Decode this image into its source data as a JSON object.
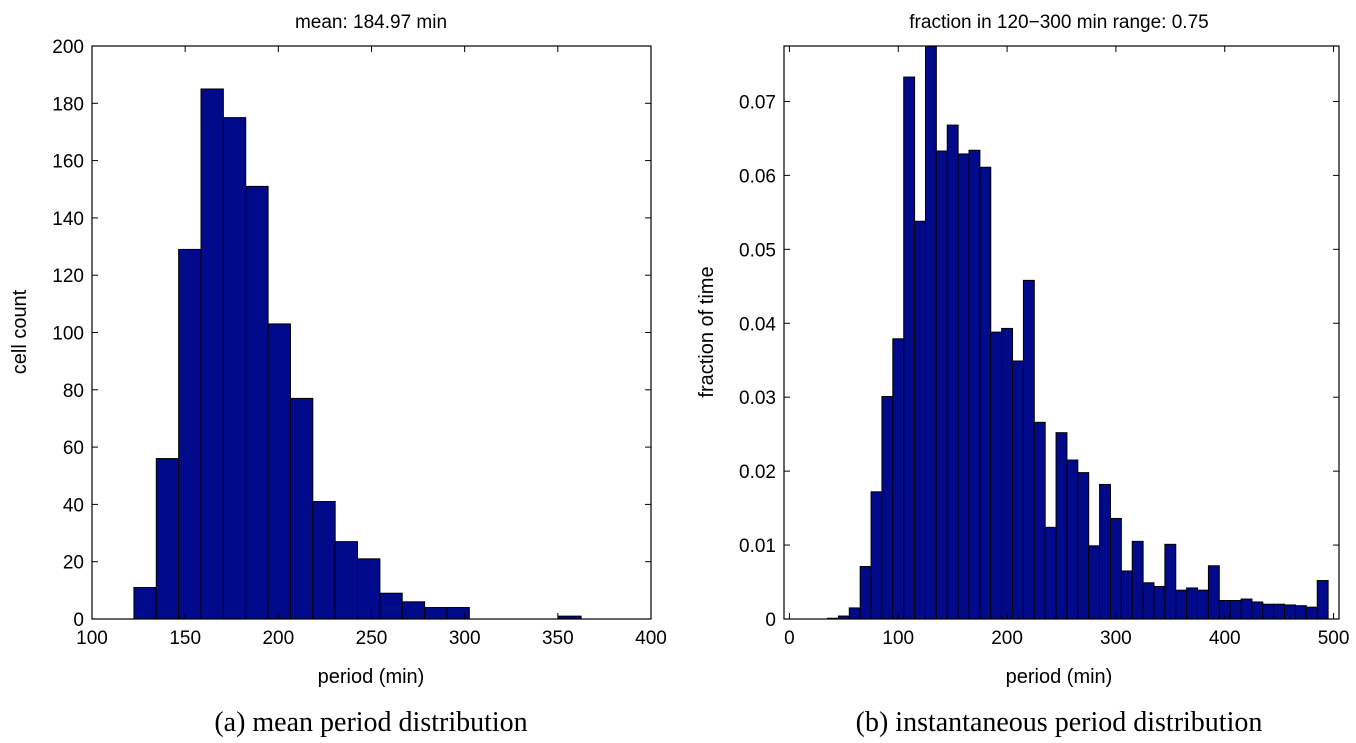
{
  "colors": {
    "bar_fill": "#000a8b",
    "bar_edge": "#000000"
  },
  "chart_data": [
    {
      "type": "bar",
      "title": "mean: 184.97 min",
      "xlabel": "period (min)",
      "ylabel": "cell count",
      "caption": "(a)  mean period distribution",
      "xlim": [
        100,
        400
      ],
      "ylim": [
        0,
        200
      ],
      "xticks": [
        100,
        150,
        200,
        250,
        300,
        350,
        400
      ],
      "yticks": [
        0,
        20,
        40,
        60,
        80,
        100,
        120,
        140,
        160,
        180,
        200
      ],
      "grid": false,
      "bin_edges": [
        122.5,
        134.5,
        146.5,
        158.5,
        170.5,
        182.5,
        194.5,
        206.5,
        218.5,
        230.5,
        242.5,
        254.5,
        266.5,
        278.5,
        290.5,
        302.5,
        314.5,
        326.5,
        338.5,
        350.5,
        362.5
      ],
      "values": [
        11,
        56,
        129,
        185,
        175,
        151,
        103,
        77,
        41,
        27,
        21,
        9,
        6,
        4,
        4,
        0,
        0,
        0,
        0,
        1
      ]
    },
    {
      "type": "bar",
      "title": "fraction in 120−300 min range: 0.75",
      "xlabel": "period (min)",
      "ylabel": "fraction of time",
      "caption": "(b)  instantaneous period distribution",
      "xlim": [
        -5,
        505
      ],
      "ylim": [
        0,
        0.0775
      ],
      "xticks": [
        0,
        100,
        200,
        300,
        400,
        500
      ],
      "yticks": [
        0,
        0.01,
        0.02,
        0.03,
        0.04,
        0.05,
        0.06,
        0.07
      ],
      "ytick_labels": [
        "0",
        "0.01",
        "0.02",
        "0.03",
        "0.04",
        "0.05",
        "0.06",
        "0.07"
      ],
      "grid": false,
      "bin_width": 10,
      "bin_centers": [
        40,
        50,
        60,
        70,
        80,
        90,
        100,
        110,
        120,
        130,
        140,
        150,
        160,
        170,
        180,
        190,
        200,
        210,
        220,
        230,
        240,
        250,
        260,
        270,
        280,
        290,
        300,
        310,
        320,
        330,
        340,
        350,
        360,
        370,
        380,
        390,
        400,
        410,
        420,
        430,
        440,
        450,
        460,
        470,
        480,
        490
      ],
      "values": [
        0.0001,
        0.0004,
        0.0015,
        0.0071,
        0.0172,
        0.0301,
        0.0379,
        0.0733,
        0.0538,
        0.0775,
        0.0633,
        0.0668,
        0.0629,
        0.0634,
        0.0611,
        0.0388,
        0.0393,
        0.0349,
        0.0458,
        0.0266,
        0.0124,
        0.0252,
        0.0215,
        0.0198,
        0.0099,
        0.0182,
        0.0136,
        0.0065,
        0.0105,
        0.0049,
        0.0044,
        0.0101,
        0.0039,
        0.0042,
        0.0039,
        0.0072,
        0.0025,
        0.0025,
        0.0027,
        0.0023,
        0.002,
        0.002,
        0.0019,
        0.0018,
        0.0016,
        0.0052
      ]
    }
  ]
}
